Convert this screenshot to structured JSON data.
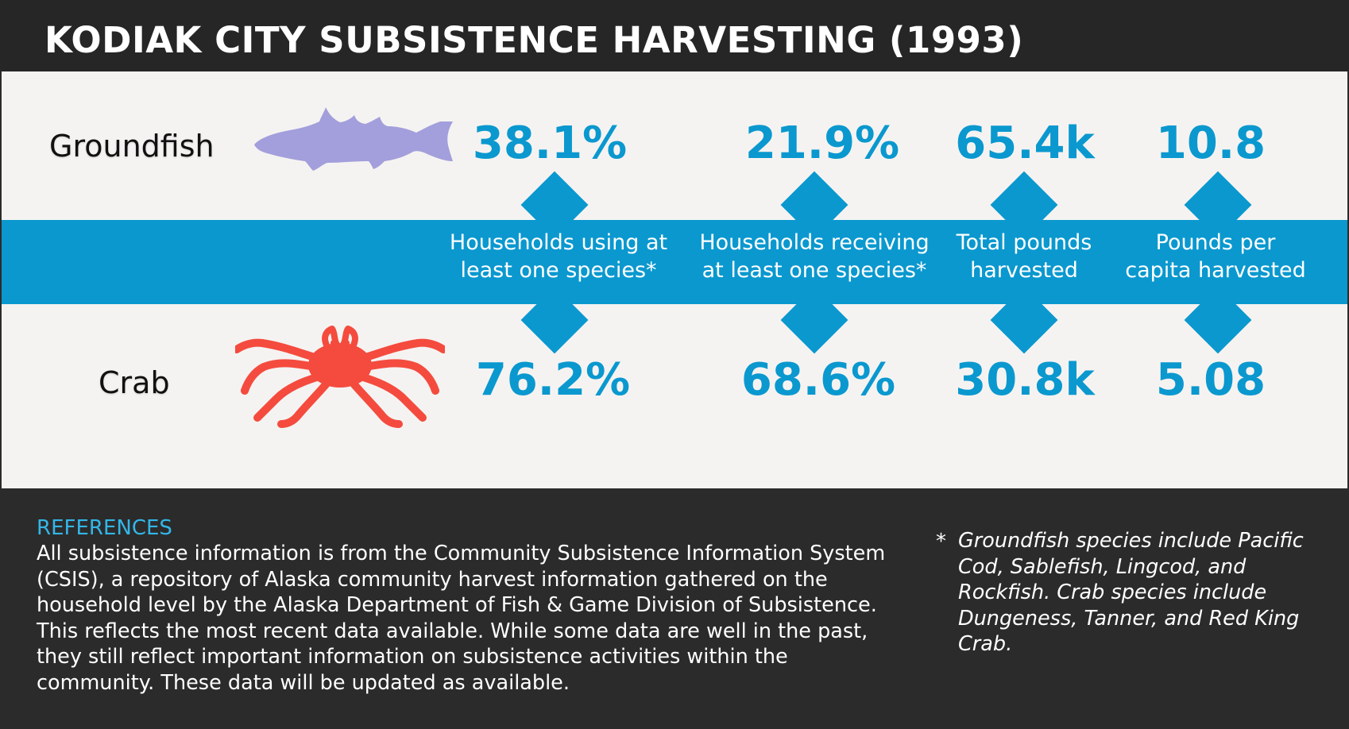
{
  "title": "KODIAK CITY SUBSISTENCE HARVESTING (1993)",
  "rows": [
    {
      "label": "Groundfish",
      "icon": "fish-icon",
      "values": [
        "38.1%",
        "21.9%",
        "65.4k",
        "10.8"
      ]
    },
    {
      "label": "Crab",
      "icon": "crab-icon",
      "values": [
        "76.2%",
        "68.6%",
        "30.8k",
        "5.08"
      ]
    }
  ],
  "metrics": [
    {
      "line1": "Households using at",
      "line2": "least one species*"
    },
    {
      "line1": "Households receiving",
      "line2": "at least one species*"
    },
    {
      "line1": "Total pounds",
      "line2": "harvested"
    },
    {
      "line1": "Pounds per",
      "line2": "capita harvested"
    }
  ],
  "references": {
    "title": "REFERENCES",
    "body": "All subsistence information is from the Community Subsistence Information System (CSIS), a repository of Alaska community harvest information gathered on the household level by the Alaska Department of Fish & Game Division of Subsistence. This reflects the most recent data available. While some data are well in the past, they still reflect important information on subsistence activities within the community. These data will be updated as available."
  },
  "note": {
    "marker": "*",
    "text": "Groundfish species include Pacific Cod, Sablefish, Lingcod, and Rockfish. Crab species include Dungeness, Tanner, and Red King Crab."
  },
  "colors": {
    "accent": "#0a98cf",
    "fish": "#a39fdc",
    "crab": "#f44b3e",
    "dark": "#2b2b2b",
    "panel": "#f5f3f1"
  }
}
